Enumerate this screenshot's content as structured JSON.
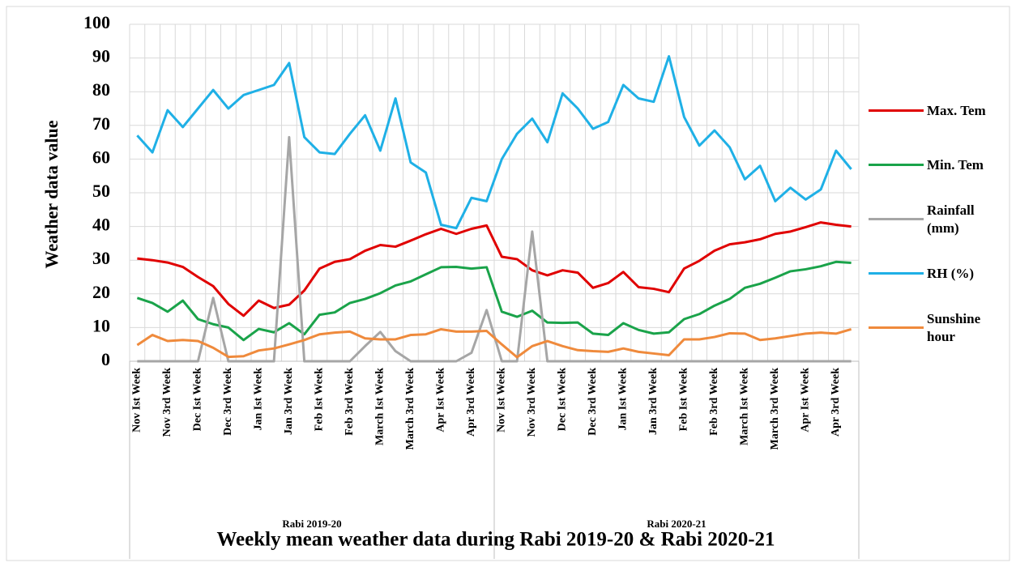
{
  "chart_data": {
    "type": "line",
    "title": "Weekly mean weather data during Rabi 2019-20 & Rabi 2020-21",
    "y_label": "Weather data value",
    "groups": [
      "Rabi 2019-20",
      "Rabi 2020-21"
    ],
    "categories": [
      "Nov Ist Week",
      null,
      "Nov 3rd Week",
      null,
      "Dec Ist Week",
      null,
      "Dec 3rd Week",
      null,
      "Jan Ist Week",
      null,
      "Jan 3rd Week",
      null,
      "Feb Ist Week",
      null,
      "Feb 3rd Week",
      null,
      "March Ist Week",
      null,
      "March 3rd Week",
      null,
      "Apr Ist Week",
      null,
      "Apr 3rd Week",
      null,
      "Nov Ist Week",
      null,
      "Nov 3rd Week",
      null,
      "Dec Ist Week",
      null,
      "Dec 3rd Week",
      null,
      "Jan Ist Week",
      null,
      "Jan 3rd Week",
      null,
      "Feb Ist Week",
      null,
      "Feb 3rd Week",
      null,
      "March Ist Week",
      null,
      "March 3rd Week",
      null,
      "Apr Ist Week",
      null,
      "Apr 3rd Week",
      null
    ],
    "series": [
      {
        "name": "Max. Tem",
        "color": "#e00000",
        "values": [
          30.5,
          30,
          29.3,
          28,
          25,
          22.3,
          17,
          13.5,
          18,
          15.8,
          16.8,
          21,
          27.5,
          29.5,
          30.3,
          32.8,
          34.5,
          34,
          35.8,
          37.7,
          39.3,
          37.8,
          39.3,
          40.3,
          31,
          30.3,
          27,
          25.5,
          27,
          26.3,
          21.8,
          23.2,
          26.5,
          22,
          21.5,
          20.5,
          27.5,
          29.8,
          32.8,
          34.7,
          35.3,
          36.2,
          37.8,
          38.5,
          39.8,
          41.2,
          40.5,
          40
        ]
      },
      {
        "name": "Min. Tem",
        "color": "#1aa34a",
        "values": [
          18.8,
          17.3,
          14.7,
          18,
          12.5,
          11,
          10,
          6.3,
          9.6,
          8.6,
          11.3,
          8,
          13.8,
          14.5,
          17.3,
          18.5,
          20.2,
          22.5,
          23.7,
          25.8,
          27.9,
          28,
          27.5,
          27.9,
          14.7,
          13.2,
          15,
          11.5,
          11.4,
          11.5,
          8.2,
          7.8,
          11.3,
          9.3,
          8.2,
          8.6,
          12.5,
          14,
          16.5,
          18.5,
          21.8,
          23,
          24.8,
          26.7,
          27.3,
          28.2,
          29.5,
          29.2
        ]
      },
      {
        "name": "Rainfall (mm)",
        "color": "#a6a6a6",
        "values": [
          0,
          0,
          0,
          0,
          0,
          18.8,
          0,
          0,
          0,
          0,
          66.5,
          0,
          0,
          0,
          0,
          4.5,
          8.7,
          3,
          0,
          0,
          0,
          0,
          2.5,
          15.2,
          0,
          0,
          38.5,
          0,
          0,
          0,
          0,
          0,
          0,
          0,
          0,
          0,
          0,
          0,
          0,
          0,
          0,
          0,
          0,
          0,
          0,
          0,
          0,
          0
        ]
      },
      {
        "name": "RH (%)",
        "color": "#1fb0e6",
        "values": [
          67,
          62,
          74.5,
          69.5,
          75,
          80.5,
          75,
          79,
          80.5,
          82,
          88.5,
          66.5,
          62,
          61.5,
          67.5,
          73,
          62.5,
          78,
          59,
          56,
          40.5,
          39.5,
          48.5,
          47.5,
          60,
          67.5,
          72,
          65,
          79.5,
          75,
          69,
          71,
          82,
          78,
          77,
          90.5,
          72.5,
          64,
          68.5,
          63.5,
          54,
          58,
          47.5,
          51.5,
          48,
          51,
          62.5,
          57
        ]
      },
      {
        "name": "Sunshine hour",
        "color": "#ef8a3c",
        "values": [
          4.8,
          7.8,
          6,
          6.3,
          6,
          4,
          1.3,
          1.5,
          3.2,
          3.8,
          5,
          6.3,
          8,
          8.5,
          8.8,
          6.8,
          6.5,
          6.5,
          7.8,
          8,
          9.5,
          8.8,
          8.8,
          9,
          5,
          1.2,
          4.5,
          6,
          4.5,
          3.3,
          3,
          2.8,
          3.8,
          2.8,
          2.3,
          1.8,
          6.5,
          6.5,
          7.2,
          8.3,
          8.2,
          6.3,
          6.8,
          7.5,
          8.2,
          8.5,
          8.2,
          9.5
        ]
      }
    ],
    "ylim": [
      0,
      100
    ],
    "yticks": [
      0,
      10,
      20,
      30,
      40,
      50,
      60,
      70,
      80,
      90,
      100
    ],
    "grid": true
  }
}
